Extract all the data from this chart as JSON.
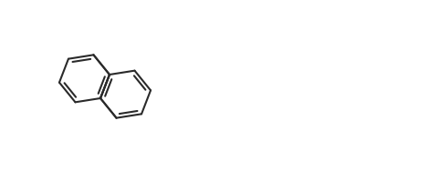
{
  "bg_color": "#ffffff",
  "line_color": "#2a2a2a",
  "line_width": 1.5,
  "figsize": [
    4.7,
    1.88
  ],
  "dpi": 100
}
